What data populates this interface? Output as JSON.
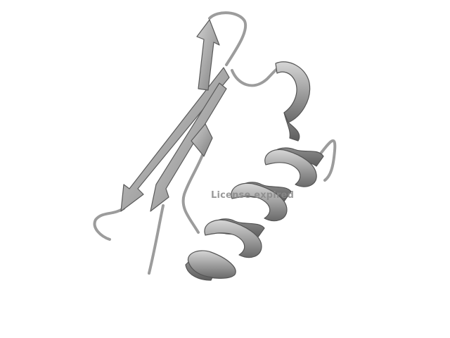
{
  "image": {
    "subject": "protein-ribbon-structure",
    "colors": {
      "background": "#ffffff",
      "ribbon_light": "#b9b9b9",
      "ribbon_mid": "#9a9a9a",
      "ribbon_dark": "#6e6e6e",
      "outline": "#555555"
    },
    "watermark": "License expired"
  }
}
